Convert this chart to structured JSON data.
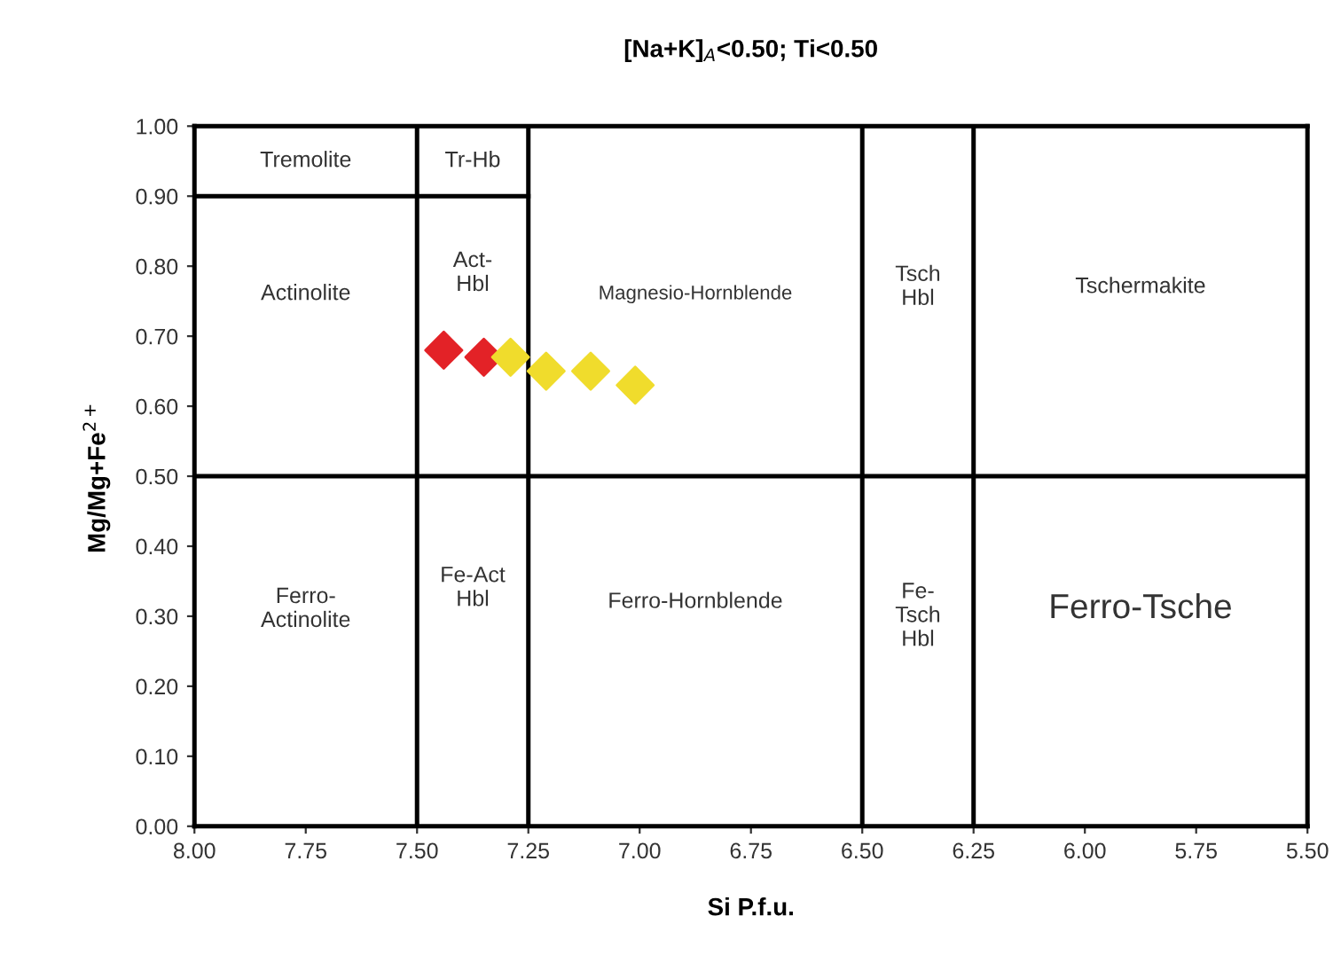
{
  "chart_data": {
    "type": "scatter",
    "title": "[Na+K]$_{A}$<0.50; Ti<0.50",
    "xlabel": "Si P.f.u.",
    "ylabel": "Mg/Mg+Fe$^{2+}$",
    "xlim": [
      8,
      5.5
    ],
    "ylim": [
      0,
      1
    ],
    "xticks": [
      {
        "value": 8,
        "label": "8.00"
      },
      {
        "value": 7.75,
        "label": "7.75"
      },
      {
        "value": 7.5,
        "label": "7.50"
      },
      {
        "value": 7.25,
        "label": "7.25"
      },
      {
        "value": 7,
        "label": "7.00"
      },
      {
        "value": 6.75,
        "label": "6.75"
      },
      {
        "value": 6.5,
        "label": "6.50"
      },
      {
        "value": 6.25,
        "label": "6.25"
      },
      {
        "value": 6,
        "label": "6.00"
      },
      {
        "value": 5.75,
        "label": "5.75"
      },
      {
        "value": 5.5,
        "label": "5.50"
      }
    ],
    "yticks": [
      {
        "value": 0,
        "label": "0.00"
      },
      {
        "value": 0.1,
        "label": "0.10"
      },
      {
        "value": 0.2,
        "label": "0.20"
      },
      {
        "value": 0.3,
        "label": "0.30"
      },
      {
        "value": 0.4,
        "label": "0.40"
      },
      {
        "value": 0.5,
        "label": "0.50"
      },
      {
        "value": 0.6,
        "label": "0.60"
      },
      {
        "value": 0.7,
        "label": "0.70"
      },
      {
        "value": 0.8,
        "label": "0.80"
      },
      {
        "value": 0.9,
        "label": "0.90"
      },
      {
        "value": 1,
        "label": "1.00"
      }
    ],
    "grid": false,
    "legend": false,
    "series": [
      {
        "type": "line",
        "marker": "none",
        "color": "#000000",
        "x": [
          8,
          5.5
        ],
        "values": [
          0.5,
          0.5
        ]
      },
      {
        "type": "line",
        "marker": "none",
        "color": "#000000",
        "x": [
          8,
          7.25
        ],
        "values": [
          0.9,
          0.9
        ]
      },
      {
        "type": "line",
        "marker": "none",
        "color": "#000000",
        "x": [
          7.5,
          7.5
        ],
        "values": [
          0,
          1
        ]
      },
      {
        "type": "line",
        "marker": "none",
        "color": "#000000",
        "x": [
          7.25,
          7.25
        ],
        "values": [
          0,
          1
        ]
      },
      {
        "type": "line",
        "marker": "none",
        "color": "#000000",
        "x": [
          6.5,
          6.5
        ],
        "values": [
          0,
          1
        ]
      },
      {
        "type": "line",
        "marker": "none",
        "color": "#000000",
        "x": [
          6.25,
          6.25
        ],
        "values": [
          0,
          1
        ]
      },
      {
        "marker": "diamond",
        "color": "#e32227",
        "x": [
          7.44,
          7.35
        ],
        "values": [
          0.68,
          0.67
        ]
      },
      {
        "marker": "diamond",
        "color": "#f0dc2c",
        "x": [
          7.29,
          7.21,
          7.11,
          7.01
        ],
        "values": [
          0.67,
          0.65,
          0.65,
          0.63
        ]
      }
    ],
    "annotations": [
      "Tremolite",
      "Tr-Hb",
      "Actinolite",
      "Act-\nHbl",
      "Magnesio-Hornblende",
      "Tsch\nHbl",
      "Tschermakite",
      "Ferro-\nActinolite",
      "Fe-Act\nHbl",
      "Ferro-Hornblende",
      "Fe-\nTsch\nHbl",
      "Ferro-Tsche"
    ]
  }
}
